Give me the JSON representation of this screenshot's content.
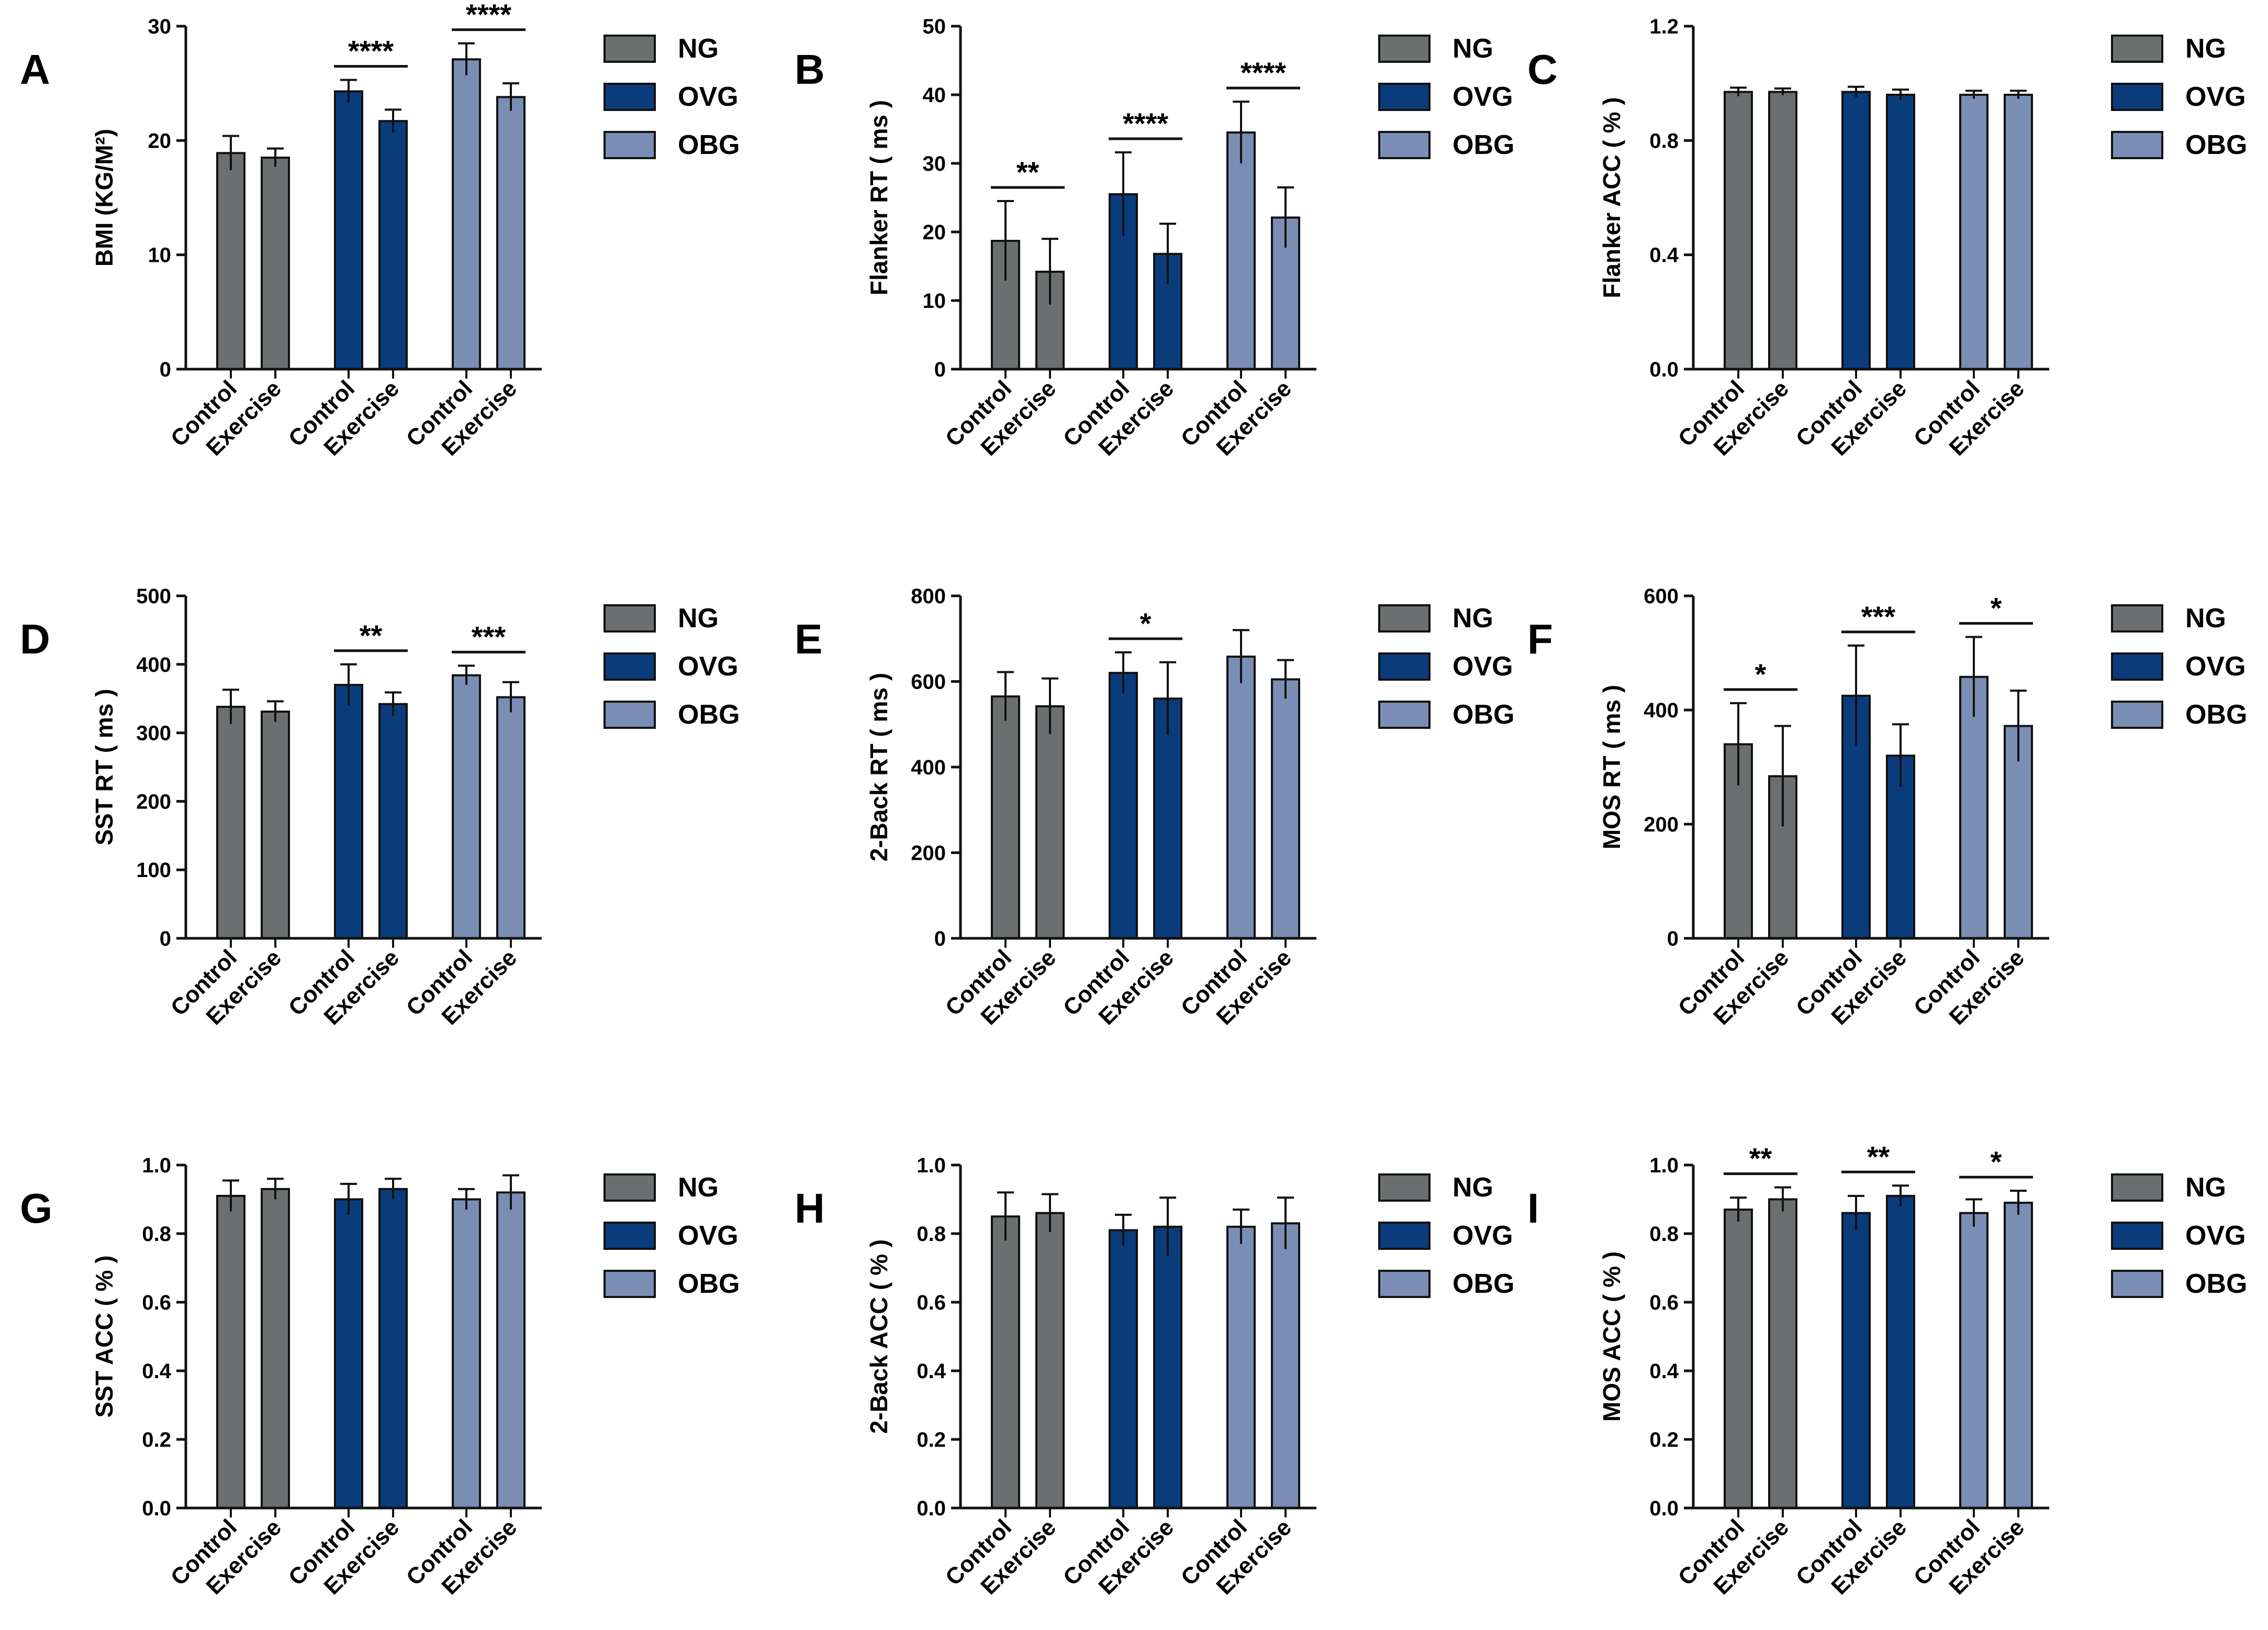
{
  "legend": {
    "labels": [
      "NG",
      "OVG",
      "OBG"
    ]
  },
  "colors": {
    "NG": "#6c6f70",
    "OVG": "#0a3c7c",
    "OBG": "#7a8eb5",
    "stroke": "#111111"
  },
  "chart_data": [
    {
      "panel": "A",
      "type": "bar",
      "ylabel": "BMI  (KG/M²)",
      "ylim": [
        0,
        30
      ],
      "yticks": [
        "0",
        "10",
        "20",
        "30"
      ],
      "categories": [
        "Control",
        "Exercise",
        "Control",
        "Exercise",
        "Control",
        "Exercise"
      ],
      "groups": [
        "NG",
        "NG",
        "OVG",
        "OVG",
        "OBG",
        "OBG"
      ],
      "values": [
        18.9,
        18.5,
        24.3,
        21.7,
        27.1,
        23.8
      ],
      "errors": [
        1.5,
        0.8,
        1.0,
        1.0,
        1.4,
        1.2
      ],
      "significance": [
        {
          "between": [
            2,
            3
          ],
          "label": "****"
        },
        {
          "between": [
            4,
            5
          ],
          "label": "****"
        }
      ]
    },
    {
      "panel": "B",
      "type": "bar",
      "ylabel": "Flanker RT ( ms )",
      "ylim": [
        0,
        50
      ],
      "yticks": [
        "0",
        "10",
        "20",
        "30",
        "40",
        "50"
      ],
      "categories": [
        "Control",
        "Exercise",
        "Control",
        "Exercise",
        "Control",
        "Exercise"
      ],
      "groups": [
        "NG",
        "NG",
        "OVG",
        "OVG",
        "OBG",
        "OBG"
      ],
      "values": [
        18.7,
        14.2,
        25.5,
        16.8,
        34.5,
        22.1
      ],
      "errors": [
        5.8,
        4.8,
        6.1,
        4.4,
        4.5,
        4.4
      ],
      "significance": [
        {
          "between": [
            0,
            1
          ],
          "label": "**"
        },
        {
          "between": [
            2,
            3
          ],
          "label": "****"
        },
        {
          "between": [
            4,
            5
          ],
          "label": "****"
        }
      ]
    },
    {
      "panel": "C",
      "type": "bar",
      "ylabel": "Flanker  ACC ( % )",
      "ylim": [
        0,
        1.2
      ],
      "yticks": [
        "0.0",
        "0.4",
        "0.8",
        "1.2"
      ],
      "categories": [
        "Control",
        "Exercise",
        "Control",
        "Exercise",
        "Control",
        "Exercise"
      ],
      "groups": [
        "NG",
        "NG",
        "OVG",
        "OVG",
        "OBG",
        "OBG"
      ],
      "values": [
        0.97,
        0.97,
        0.97,
        0.96,
        0.96,
        0.96
      ],
      "errors": [
        0.015,
        0.012,
        0.018,
        0.018,
        0.014,
        0.014
      ],
      "significance": []
    },
    {
      "panel": "D",
      "type": "bar",
      "ylabel": "SST  RT ( ms )",
      "ylim": [
        0,
        500
      ],
      "yticks": [
        "0",
        "100",
        "200",
        "300",
        "400",
        "500"
      ],
      "categories": [
        "Control",
        "Exercise",
        "Control",
        "Exercise",
        "Control",
        "Exercise"
      ],
      "groups": [
        "NG",
        "NG",
        "OVG",
        "OVG",
        "OBG",
        "OBG"
      ],
      "values": [
        338,
        331,
        370,
        342,
        384,
        352
      ],
      "errors": [
        25,
        15,
        30,
        17,
        14,
        22
      ],
      "significance": [
        {
          "between": [
            2,
            3
          ],
          "label": "**"
        },
        {
          "between": [
            4,
            5
          ],
          "label": "***"
        }
      ]
    },
    {
      "panel": "E",
      "type": "bar",
      "ylabel": "2-Back RT ( ms )",
      "ylim": [
        0,
        800
      ],
      "yticks": [
        "0",
        "200",
        "400",
        "600",
        "800"
      ],
      "categories": [
        "Control",
        "Exercise",
        "Control",
        "Exercise",
        "Control",
        "Exercise"
      ],
      "groups": [
        "NG",
        "NG",
        "OVG",
        "OVG",
        "OBG",
        "OBG"
      ],
      "values": [
        565,
        542,
        620,
        560,
        658,
        605
      ],
      "errors": [
        57,
        65,
        48,
        85,
        62,
        45
      ],
      "significance": [
        {
          "between": [
            2,
            3
          ],
          "label": "*"
        }
      ]
    },
    {
      "panel": "F",
      "type": "bar",
      "ylabel": "MOS  RT ( ms )",
      "ylim": [
        0,
        600
      ],
      "yticks": [
        "0",
        "200",
        "400",
        "600"
      ],
      "categories": [
        "Control",
        "Exercise",
        "Control",
        "Exercise",
        "Control",
        "Exercise"
      ],
      "groups": [
        "NG",
        "NG",
        "OVG",
        "OVG",
        "OBG",
        "OBG"
      ],
      "values": [
        340,
        284,
        425,
        320,
        458,
        372
      ],
      "errors": [
        72,
        88,
        88,
        55,
        70,
        62
      ],
      "significance": [
        {
          "between": [
            0,
            1
          ],
          "label": "*"
        },
        {
          "between": [
            2,
            3
          ],
          "label": "***"
        },
        {
          "between": [
            4,
            5
          ],
          "label": "*"
        }
      ]
    },
    {
      "panel": "G",
      "type": "bar",
      "ylabel": "SST  ACC ( % )",
      "ylim": [
        0,
        1.0
      ],
      "yticks": [
        "0.0",
        "0.2",
        "0.4",
        "0.6",
        "0.8",
        "1.0"
      ],
      "categories": [
        "Control",
        "Exercise",
        "Control",
        "Exercise",
        "Control",
        "Exercise"
      ],
      "groups": [
        "NG",
        "NG",
        "OVG",
        "OVG",
        "OBG",
        "OBG"
      ],
      "values": [
        0.91,
        0.93,
        0.9,
        0.93,
        0.9,
        0.92
      ],
      "errors": [
        0.045,
        0.03,
        0.045,
        0.03,
        0.03,
        0.05
      ],
      "significance": []
    },
    {
      "panel": "H",
      "type": "bar",
      "ylabel": "2-Back  ACC ( % )",
      "ylim": [
        0,
        1.0
      ],
      "yticks": [
        "0.0",
        "0.2",
        "0.4",
        "0.6",
        "0.8",
        "1.0"
      ],
      "categories": [
        "Control",
        "Exercise",
        "Control",
        "Exercise",
        "Control",
        "Exercise"
      ],
      "groups": [
        "NG",
        "NG",
        "OVG",
        "OVG",
        "OBG",
        "OBG"
      ],
      "values": [
        0.85,
        0.86,
        0.81,
        0.82,
        0.82,
        0.83
      ],
      "errors": [
        0.07,
        0.055,
        0.045,
        0.085,
        0.05,
        0.075
      ],
      "significance": []
    },
    {
      "panel": "I",
      "type": "bar",
      "ylabel": "MOS  ACC ( % )",
      "ylim": [
        0,
        1.0
      ],
      "yticks": [
        "0.0",
        "0.2",
        "0.4",
        "0.6",
        "0.8",
        "1.0"
      ],
      "categories": [
        "Control",
        "Exercise",
        "Control",
        "Exercise",
        "Control",
        "Exercise"
      ],
      "groups": [
        "NG",
        "NG",
        "OVG",
        "OVG",
        "OBG",
        "OBG"
      ],
      "values": [
        0.87,
        0.9,
        0.86,
        0.91,
        0.86,
        0.89
      ],
      "errors": [
        0.035,
        0.035,
        0.05,
        0.03,
        0.04,
        0.035
      ],
      "significance": [
        {
          "between": [
            0,
            1
          ],
          "label": "**"
        },
        {
          "between": [
            2,
            3
          ],
          "label": "**"
        },
        {
          "between": [
            4,
            5
          ],
          "label": "*"
        }
      ]
    }
  ]
}
